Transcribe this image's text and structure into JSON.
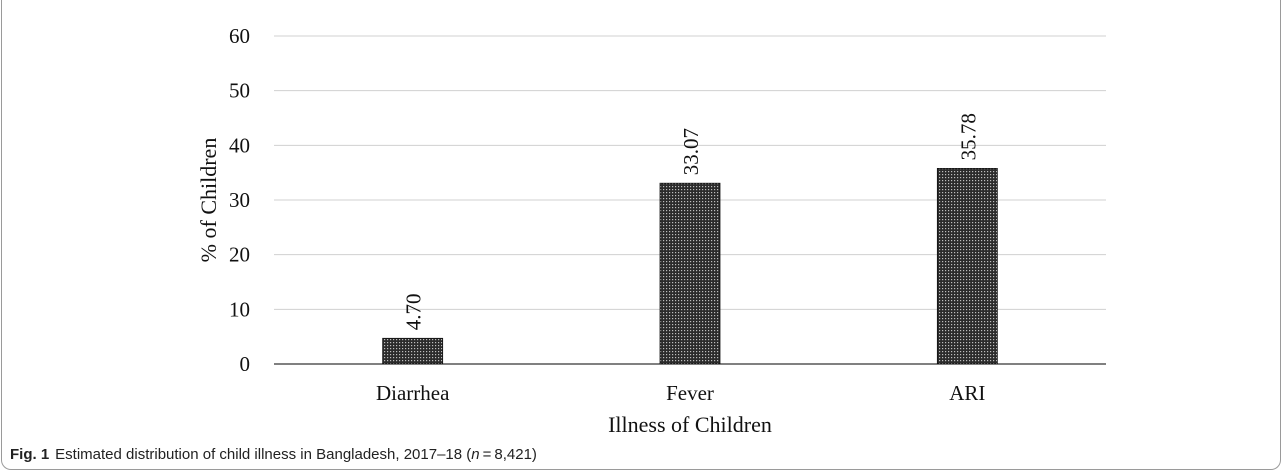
{
  "chart_data": {
    "type": "bar",
    "categories": [
      "Diarrhea",
      "Fever",
      "ARI"
    ],
    "values": [
      4.7,
      33.07,
      35.78
    ],
    "data_labels": [
      "4.70",
      "33.07",
      "35.78"
    ],
    "title": "",
    "xlabel": "Illness of Children",
    "ylabel": "% of Children",
    "ylim": [
      0,
      60
    ],
    "yticks": [
      "0",
      "10",
      "20",
      "30",
      "40",
      "50",
      "60"
    ],
    "grid": true,
    "bar_pattern": "dotted-dark"
  },
  "caption": {
    "label": "Fig. 1",
    "text_before_n": "Estimated distribution of child illness in Bangladesh, 2017–18 (",
    "n_symbol": "n",
    "text_after_n": " = 8,421)"
  },
  "colors": {
    "bar_fill": "#2b2b2b",
    "bar_dot": "#bdbdbd",
    "grid": "#d0d0d0",
    "axis": "#000000"
  }
}
